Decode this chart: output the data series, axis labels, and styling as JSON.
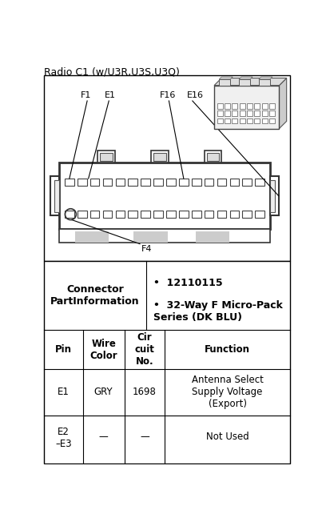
{
  "title": "Radio C1 (w/U3R,U3S,U3Q)",
  "title_fontsize": 9,
  "bg_color": "#ffffff",
  "fig_width": 4.08,
  "fig_height": 6.52,
  "dpi": 100,
  "connector_info_line1": "12110115",
  "connector_info_line2": "32-Way F Micro-Pack\nSeries (DK BLU)",
  "connector_label": "Connector\nPartInformation",
  "headers": [
    "Pin",
    "Wire\nColor",
    "Cir\ncuit\nNo.",
    "Function"
  ],
  "row1": [
    "E1",
    "GRY",
    "1698",
    "Antenna Select\nSupply Voltage\n(Export)"
  ],
  "row2": [
    "E2\n–E3",
    "—",
    "—",
    "Not Used"
  ],
  "labels": [
    "F1",
    "E1",
    "F16",
    "E16",
    "F4"
  ]
}
